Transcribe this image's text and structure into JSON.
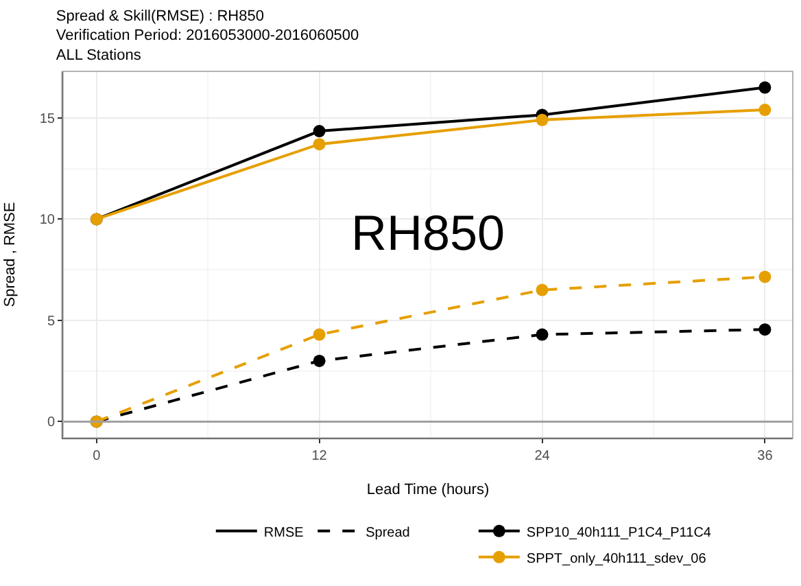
{
  "chart_data": {
    "type": "line",
    "title": "Spread & Skill(RMSE) : RH850",
    "subtitle": "Verification Period: 2016053000-2016060500\nALL Stations",
    "xlabel": "Lead Time (hours)",
    "ylabel": "Spread , RMSE",
    "annotations": [
      "RH850",
      "RMSE",
      "Spread"
    ],
    "x": [
      0,
      12,
      24,
      36
    ],
    "series": [
      {
        "name": "SPP10_40h111_P1C4_P11C4",
        "color": "#000000",
        "line_style": "solid",
        "values": [
          10,
          14.35,
          15.15,
          16.5
        ]
      },
      {
        "name": "SPPT_only_40h111_sdev_06",
        "color": "#e69f00",
        "line_style": "solid",
        "values": [
          10,
          13.7,
          14.9,
          15.4
        ]
      },
      {
        "color": "#000000",
        "line_style": "dashed",
        "values": [
          0,
          3.0,
          4.3,
          4.55
        ]
      },
      {
        "color": "#e69f00",
        "line_style": "dashed",
        "values": [
          0,
          4.3,
          6.5,
          7.15
        ]
      }
    ],
    "xlim": [
      -1.8,
      37.5
    ],
    "ylim": [
      -0.8,
      17.3
    ],
    "xticks": [
      0,
      12,
      24,
      36
    ],
    "yticks": [
      0,
      5,
      10,
      15
    ],
    "ref_lines": [
      {
        "axis": "y",
        "value": 0,
        "color": "#a0a0a0"
      }
    ],
    "grid": true,
    "legend": "bottom",
    "marker": "circle"
  }
}
